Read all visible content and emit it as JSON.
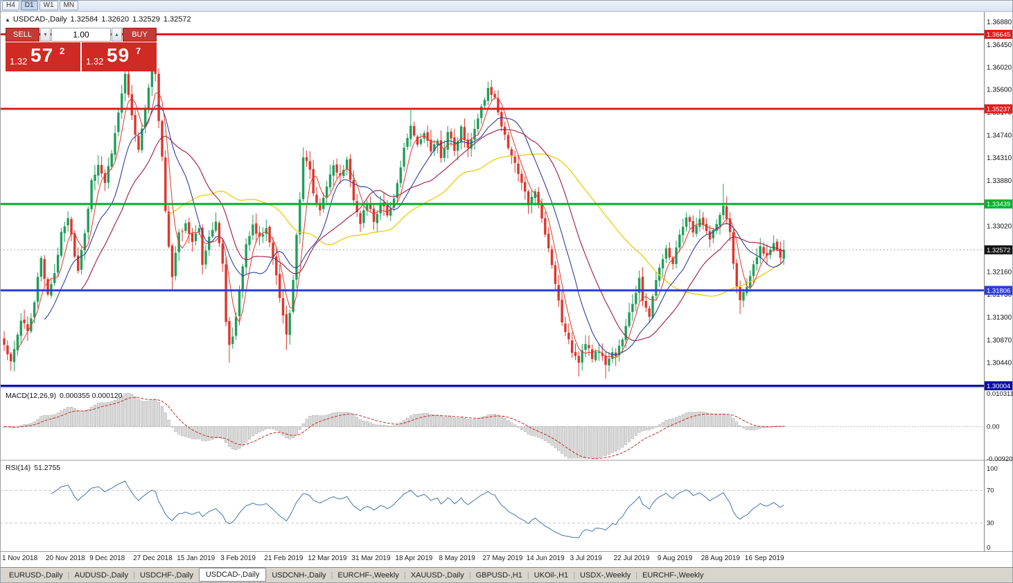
{
  "toolbar": {
    "timeframes": [
      {
        "label": "H4",
        "active": false
      },
      {
        "label": "D1",
        "active": true
      },
      {
        "label": "W1",
        "active": false
      },
      {
        "label": "MN",
        "active": false
      }
    ]
  },
  "header": {
    "symbol": "USDCAD-,Daily",
    "open": "1.32584",
    "high": "1.32620",
    "low": "1.32529",
    "close": "1.32572"
  },
  "icons": {
    "collapse_arrow": "▲",
    "volume_down": "▼",
    "volume_up": "▲"
  },
  "trade_panel": {
    "sell_label": "SELL",
    "buy_label": "BUY",
    "volume": "1.00",
    "sell_price": {
      "prefix": "1.32",
      "big": "57",
      "sup": "2"
    },
    "buy_price": {
      "prefix": "1.32",
      "big": "59",
      "sup": "7"
    }
  },
  "price_axis": {
    "ticks": [
      "1.36880",
      "1.36450",
      "1.36020",
      "1.35600",
      "1.35170",
      "1.34740",
      "1.34310",
      "1.33880",
      "1.33450",
      "1.33020",
      "1.32590",
      "1.32160",
      "1.31730",
      "1.31300",
      "1.30870",
      "1.30440",
      "1.30010"
    ]
  },
  "levels": [
    {
      "label": "1.36645",
      "value": 1.36645,
      "color": "#e31b18"
    },
    {
      "label": "1.35237",
      "value": 1.35237,
      "color": "#e31b18"
    },
    {
      "label": "1.33439",
      "value": 1.33439,
      "color": "#00b32a"
    },
    {
      "label": "1.31806",
      "value": 1.31806,
      "color": "#2a3cd8"
    },
    {
      "label": "1.30004",
      "value": 1.30004,
      "color": "#0b0da6"
    }
  ],
  "current_price": {
    "label": "1.32572",
    "value": 1.32572,
    "color": "#141414"
  },
  "chart_data": {
    "type": "candlestick",
    "symbol": "USDCAD",
    "timeframe": "Daily",
    "price_range": {
      "top": 1.369,
      "bottom": 1.29997
    },
    "num_candles": 233,
    "colors": {
      "up": "#1f9e5a",
      "down": "#df352c"
    },
    "anchors": [
      [
        0,
        1.308
      ],
      [
        1,
        1.3058
      ],
      [
        2,
        1.3046
      ],
      [
        4,
        1.3096
      ],
      [
        5,
        1.3124
      ],
      [
        7,
        1.3106
      ],
      [
        9,
        1.3158
      ],
      [
        11,
        1.3243
      ],
      [
        13,
        1.3172
      ],
      [
        15,
        1.3212
      ],
      [
        17,
        1.329
      ],
      [
        19,
        1.3318
      ],
      [
        21,
        1.3244
      ],
      [
        22,
        1.3216
      ],
      [
        24,
        1.3288
      ],
      [
        26,
        1.3388
      ],
      [
        28,
        1.3418
      ],
      [
        30,
        1.3382
      ],
      [
        32,
        1.3438
      ],
      [
        34,
        1.3516
      ],
      [
        36,
        1.3588
      ],
      [
        38,
        1.3512
      ],
      [
        40,
        1.3448
      ],
      [
        42,
        1.352
      ],
      [
        44,
        1.3598
      ],
      [
        45,
        1.3588
      ],
      [
        46,
        1.3502
      ],
      [
        47,
        1.3432
      ],
      [
        48,
        1.3332
      ],
      [
        49,
        1.3262
      ],
      [
        50,
        1.3206
      ],
      [
        52,
        1.3288
      ],
      [
        54,
        1.3308
      ],
      [
        56,
        1.3272
      ],
      [
        58,
        1.3296
      ],
      [
        59,
        1.3228
      ],
      [
        61,
        1.3282
      ],
      [
        63,
        1.3308
      ],
      [
        65,
        1.3232
      ],
      [
        66,
        1.3122
      ],
      [
        67,
        1.3078
      ],
      [
        68,
        1.3092
      ],
      [
        69,
        1.3132
      ],
      [
        70,
        1.3182
      ],
      [
        72,
        1.3268
      ],
      [
        74,
        1.3304
      ],
      [
        76,
        1.3282
      ],
      [
        78,
        1.3298
      ],
      [
        80,
        1.3242
      ],
      [
        82,
        1.3168
      ],
      [
        84,
        1.3098
      ],
      [
        85,
        1.3136
      ],
      [
        86,
        1.3202
      ],
      [
        87,
        1.3288
      ],
      [
        88,
        1.3352
      ],
      [
        89,
        1.3432
      ],
      [
        91,
        1.3408
      ],
      [
        92,
        1.3362
      ],
      [
        94,
        1.3332
      ],
      [
        96,
        1.3378
      ],
      [
        98,
        1.3418
      ],
      [
        100,
        1.3398
      ],
      [
        102,
        1.3428
      ],
      [
        104,
        1.3352
      ],
      [
        106,
        1.3308
      ],
      [
        108,
        1.3344
      ],
      [
        110,
        1.3312
      ],
      [
        112,
        1.3348
      ],
      [
        114,
        1.3322
      ],
      [
        116,
        1.3352
      ],
      [
        117,
        1.3384
      ],
      [
        119,
        1.3448
      ],
      [
        121,
        1.3494
      ],
      [
        123,
        1.3458
      ],
      [
        125,
        1.3478
      ],
      [
        127,
        1.3442
      ],
      [
        129,
        1.3464
      ],
      [
        130,
        1.3432
      ],
      [
        132,
        1.3478
      ],
      [
        134,
        1.3446
      ],
      [
        136,
        1.3488
      ],
      [
        138,
        1.3452
      ],
      [
        140,
        1.3488
      ],
      [
        142,
        1.3528
      ],
      [
        144,
        1.3562
      ],
      [
        146,
        1.3544
      ],
      [
        148,
        1.3492
      ],
      [
        150,
        1.3452
      ],
      [
        152,
        1.3422
      ],
      [
        154,
        1.3382
      ],
      [
        156,
        1.3342
      ],
      [
        158,
        1.3368
      ],
      [
        160,
        1.3318
      ],
      [
        162,
        1.3262
      ],
      [
        164,
        1.3192
      ],
      [
        166,
        1.3122
      ],
      [
        168,
        1.3086
      ],
      [
        169,
        1.3062
      ],
      [
        171,
        1.3046
      ],
      [
        173,
        1.3078
      ],
      [
        175,
        1.3052
      ],
      [
        177,
        1.3066
      ],
      [
        179,
        1.3042
      ],
      [
        181,
        1.3062
      ],
      [
        182,
        1.3056
      ],
      [
        184,
        1.3088
      ],
      [
        186,
        1.3138
      ],
      [
        188,
        1.3176
      ],
      [
        189,
        1.3204
      ],
      [
        190,
        1.3162
      ],
      [
        192,
        1.3132
      ],
      [
        194,
        1.3198
      ],
      [
        195,
        1.3224
      ],
      [
        197,
        1.3258
      ],
      [
        199,
        1.3232
      ],
      [
        201,
        1.3288
      ],
      [
        203,
        1.3318
      ],
      [
        205,
        1.3292
      ],
      [
        207,
        1.3318
      ],
      [
        208,
        1.3304
      ],
      [
        210,
        1.3276
      ],
      [
        212,
        1.3308
      ],
      [
        214,
        1.3338
      ],
      [
        216,
        1.3292
      ],
      [
        217,
        1.3232
      ],
      [
        218,
        1.3186
      ],
      [
        219,
        1.3162
      ],
      [
        221,
        1.3186
      ],
      [
        223,
        1.3228
      ],
      [
        225,
        1.3262
      ],
      [
        227,
        1.3248
      ],
      [
        229,
        1.3268
      ],
      [
        231,
        1.3244
      ],
      [
        232,
        1.32572
      ]
    ],
    "wick_overrides": [
      {
        "i": 36,
        "h": 1.3612
      },
      {
        "i": 44,
        "h": 1.3622
      },
      {
        "i": 50,
        "l": 1.3181
      },
      {
        "i": 67,
        "l": 1.3044
      },
      {
        "i": 84,
        "l": 1.3068
      },
      {
        "i": 121,
        "h": 1.3521
      },
      {
        "i": 145,
        "h": 1.3578
      },
      {
        "i": 171,
        "l": 1.3018
      },
      {
        "i": 179,
        "l": 1.3014
      },
      {
        "i": 214,
        "h": 1.3382
      },
      {
        "i": 219,
        "l": 1.3136
      }
    ],
    "moving_averages": [
      {
        "period": 50,
        "color": "#efcf16",
        "width": 1.4
      },
      {
        "period": 24,
        "color": "#a5173c",
        "width": 1.1
      },
      {
        "period": 13,
        "color": "#2b3f9e",
        "width": 1.1
      },
      {
        "period": 5,
        "color": "#e2382a",
        "width": 1.0
      }
    ],
    "macd": {
      "label": "MACD(12,26,9)",
      "values": "0.000355 0.000120",
      "params": [
        12,
        26,
        9
      ],
      "range": {
        "max": 0.010311,
        "min": -0.009203
      },
      "axis": [
        "0.010311",
        "0.00",
        "-0.009203"
      ],
      "histogram_color": "#dcdcdc",
      "histogram_edge": "#a0a0a0",
      "signal_color": "#c32a22"
    },
    "rsi": {
      "label": "RSI(14)",
      "value": "51.2755",
      "period": 14,
      "line_color": "#3f74ad",
      "levels": [
        70,
        30
      ],
      "axis": [
        "100",
        "70",
        "30",
        "0"
      ]
    },
    "x_labels": [
      {
        "label": "1 Nov 2018",
        "index": 0
      },
      {
        "label": "20 Nov 2018",
        "index": 13
      },
      {
        "label": "9 Dec 2018",
        "index": 26
      },
      {
        "label": "27 Dec 2018",
        "index": 39
      },
      {
        "label": "15 Jan 2019",
        "index": 52
      },
      {
        "label": "3 Feb 2019",
        "index": 65
      },
      {
        "label": "21 Feb 2019",
        "index": 78
      },
      {
        "label": "12 Mar 2019",
        "index": 91
      },
      {
        "label": "31 Mar 2019",
        "index": 104
      },
      {
        "label": "18 Apr 2019",
        "index": 117
      },
      {
        "label": "8 May 2019",
        "index": 130
      },
      {
        "label": "27 May 2019",
        "index": 143
      },
      {
        "label": "14 Jun 2019",
        "index": 156
      },
      {
        "label": "3 Jul 2019",
        "index": 169
      },
      {
        "label": "22 Jul 2019",
        "index": 182
      },
      {
        "label": "9 Aug 2019",
        "index": 195
      },
      {
        "label": "28 Aug 2019",
        "index": 208
      },
      {
        "label": "16 Sep 2019",
        "index": 221
      }
    ]
  },
  "bottom_tabs": [
    {
      "label": "EURUSD-,Daily",
      "active": false
    },
    {
      "label": "AUDUSD-,Daily",
      "active": false
    },
    {
      "label": "USDCHF-,Daily",
      "active": false
    },
    {
      "label": "USDCAD-,Daily",
      "active": true
    },
    {
      "label": "USDCNH-,Daily",
      "active": false
    },
    {
      "label": "EURCHF-,Weekly",
      "active": false
    },
    {
      "label": "XAUUSD-,Daily",
      "active": false
    },
    {
      "label": "GBPUSD-,H1",
      "active": false
    },
    {
      "label": "UKOil-,H1",
      "active": false
    },
    {
      "label": "USDX-,Weekly",
      "active": false
    },
    {
      "label": "EURCHF-,Weekly",
      "active": false
    }
  ]
}
